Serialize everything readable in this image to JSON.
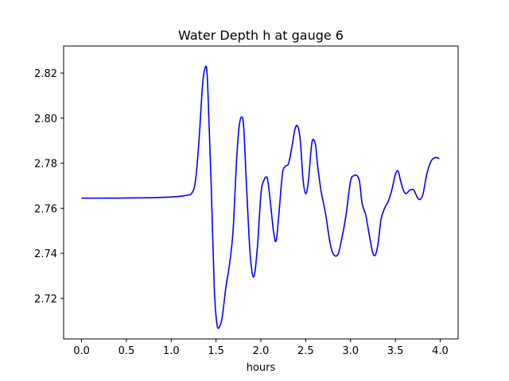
{
  "chart_data": {
    "type": "line",
    "title": "Water Depth h at gauge 6",
    "xlabel": "hours",
    "ylabel": "",
    "xlim": [
      -0.2,
      4.2
    ],
    "ylim": [
      2.702,
      2.832
    ],
    "xticks": [
      0.0,
      0.5,
      1.0,
      1.5,
      2.0,
      2.5,
      3.0,
      3.5,
      4.0
    ],
    "xtick_labels": [
      "0.0",
      "0.5",
      "1.0",
      "1.5",
      "2.0",
      "2.5",
      "3.0",
      "3.5",
      "4.0"
    ],
    "yticks": [
      2.72,
      2.74,
      2.76,
      2.78,
      2.8,
      2.82
    ],
    "ytick_labels": [
      "2.72",
      "2.74",
      "2.76",
      "2.78",
      "2.80",
      "2.82"
    ],
    "grid": false,
    "series": [
      {
        "color": "#0000ff",
        "x": [
          0.0,
          0.3,
          0.6,
          0.8,
          1.0,
          1.1,
          1.18,
          1.23,
          1.27,
          1.31,
          1.35,
          1.38,
          1.4,
          1.42,
          1.45,
          1.48,
          1.51,
          1.54,
          1.57,
          1.61,
          1.65,
          1.69,
          1.73,
          1.76,
          1.79,
          1.81,
          1.84,
          1.88,
          1.92,
          1.96,
          2.0,
          2.03,
          2.07,
          2.1,
          2.14,
          2.17,
          2.2,
          2.24,
          2.27,
          2.31,
          2.35,
          2.38,
          2.41,
          2.44,
          2.47,
          2.5,
          2.53,
          2.56,
          2.58,
          2.61,
          2.63,
          2.67,
          2.72,
          2.77,
          2.81,
          2.86,
          2.9,
          2.95,
          3.0,
          3.04,
          3.07,
          3.1,
          3.13,
          3.17,
          3.21,
          3.25,
          3.28,
          3.31,
          3.34,
          3.38,
          3.42,
          3.46,
          3.5,
          3.53,
          3.56,
          3.59,
          3.62,
          3.66,
          3.7,
          3.72,
          3.75,
          3.78,
          3.81,
          3.85,
          3.9,
          3.95,
          3.99
        ],
        "y": [
          2.7645,
          2.7645,
          2.7646,
          2.7647,
          2.765,
          2.7653,
          2.7658,
          2.7667,
          2.772,
          2.79,
          2.815,
          2.8225,
          2.82,
          2.8,
          2.765,
          2.725,
          2.7085,
          2.7075,
          2.712,
          2.725,
          2.735,
          2.75,
          2.782,
          2.797,
          2.8005,
          2.795,
          2.77,
          2.74,
          2.7295,
          2.742,
          2.766,
          2.772,
          2.7735,
          2.765,
          2.75,
          2.7455,
          2.757,
          2.775,
          2.7785,
          2.78,
          2.788,
          2.795,
          2.7965,
          2.79,
          2.773,
          2.7665,
          2.772,
          2.786,
          2.7905,
          2.788,
          2.78,
          2.768,
          2.758,
          2.745,
          2.7395,
          2.7395,
          2.746,
          2.757,
          2.772,
          2.7745,
          2.7745,
          2.772,
          2.762,
          2.757,
          2.748,
          2.74,
          2.7395,
          2.745,
          2.755,
          2.76,
          2.763,
          2.768,
          2.775,
          2.7765,
          2.772,
          2.768,
          2.7665,
          2.768,
          2.7683,
          2.767,
          2.7645,
          2.764,
          2.7665,
          2.775,
          2.781,
          2.7825,
          2.782
        ]
      }
    ]
  }
}
